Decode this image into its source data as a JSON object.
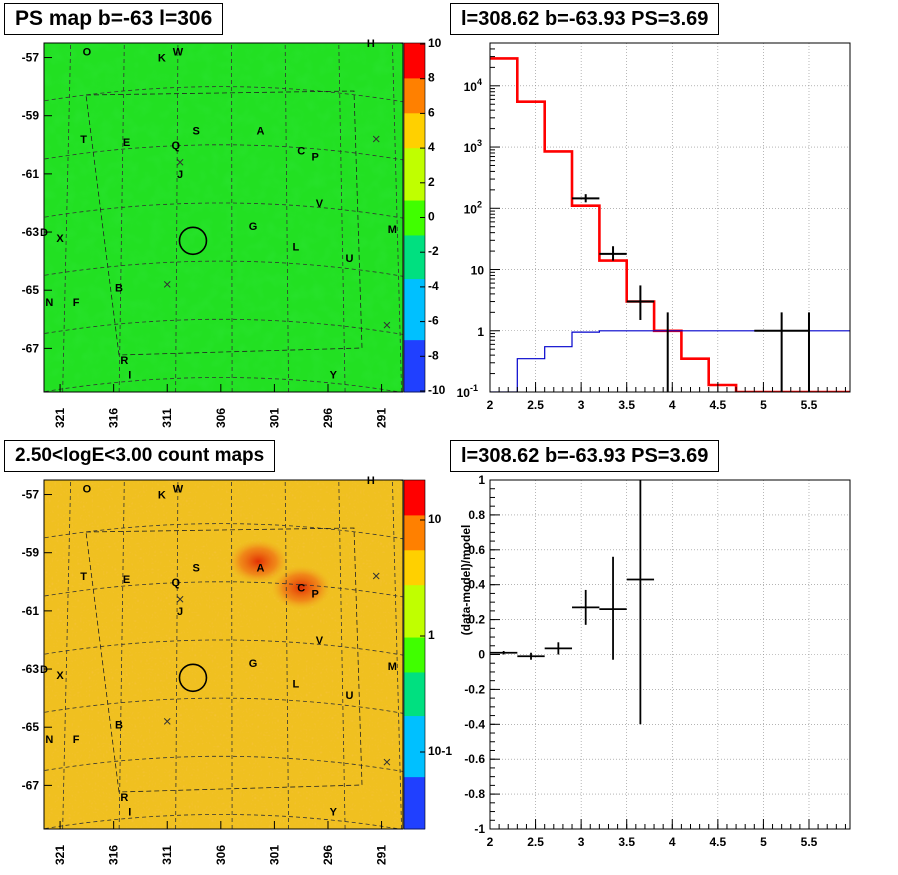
{
  "panels": {
    "ps_map": {
      "title": "PS map b=-63 l=306",
      "y_ticks": [
        "-57",
        "-59",
        "-61",
        "-63",
        "-65",
        "-67"
      ],
      "x_ticks": [
        "321",
        "316",
        "311",
        "306",
        "301",
        "296",
        "291"
      ],
      "colorbar_ticks": [
        "10",
        "8",
        "6",
        "4",
        "2",
        "0",
        "-2",
        "-4",
        "-6",
        "-8",
        "-10"
      ]
    },
    "count_map": {
      "title": "2.50<logE<3.00 count maps",
      "y_ticks": [
        "-57",
        "-59",
        "-61",
        "-63",
        "-65",
        "-67"
      ],
      "x_ticks": [
        "321",
        "316",
        "311",
        "306",
        "301",
        "296",
        "291"
      ],
      "colorbar_ticks": [
        "10",
        "1",
        "10-1"
      ]
    },
    "spectrum": {
      "title": "l=308.62 b=-63.93 PS=3.69",
      "y_ticks": [
        "10^4",
        "10^3",
        "10^2",
        "10",
        "1",
        "10^-1"
      ],
      "x_ticks": [
        "2",
        "2.5",
        "3",
        "3.5",
        "4",
        "4.5",
        "5",
        "5.5"
      ]
    },
    "residual": {
      "title": "l=308.62 b=-63.93 PS=3.69",
      "ylabel": "(data-model)/model",
      "y_ticks": [
        "1",
        "0.8",
        "0.6",
        "0.4",
        "0.2",
        "0",
        "-0.2",
        "-0.4",
        "-0.6",
        "-0.8",
        "-1"
      ],
      "x_ticks": [
        "2",
        "2.5",
        "3",
        "3.5",
        "4",
        "4.5",
        "5",
        "5.5"
      ]
    }
  },
  "source_labels": [
    "O",
    "K",
    "W",
    "H",
    "T",
    "E",
    "S",
    "Q",
    "A",
    "C",
    "P",
    "J",
    "V",
    "G",
    "M",
    "D",
    "X",
    "L",
    "U",
    "B",
    "N",
    "F",
    "R",
    "I",
    "Y"
  ],
  "colors": {
    "model_line": "#ff0000",
    "background_line": "#0000cc",
    "data_points": "#000000",
    "ps_map_base": "#22e022",
    "count_map_base": "#f0c020"
  },
  "chart_data": [
    {
      "type": "heatmap",
      "title": "PS map b=-63 l=306",
      "xlabel": "",
      "ylabel": "",
      "xlim": [
        322.5,
        289
      ],
      "ylim": [
        -68.5,
        -56.5
      ],
      "colorbar_range": [
        -10,
        10
      ],
      "source_markers": [
        {
          "label": "O",
          "l": 318.5,
          "b": -56.8
        },
        {
          "label": "K",
          "l": 311.5,
          "b": -57.0
        },
        {
          "label": "W",
          "l": 310.0,
          "b": -56.8
        },
        {
          "label": "H",
          "l": 292.0,
          "b": -56.5
        },
        {
          "label": "T",
          "l": 318.8,
          "b": -59.8
        },
        {
          "label": "E",
          "l": 314.8,
          "b": -59.9
        },
        {
          "label": "S",
          "l": 308.3,
          "b": -59.5
        },
        {
          "label": "Q",
          "l": 310.2,
          "b": -60.0
        },
        {
          "label": "A",
          "l": 302.3,
          "b": -59.5
        },
        {
          "label": "C",
          "l": 298.5,
          "b": -60.2
        },
        {
          "label": "P",
          "l": 297.2,
          "b": -60.4
        },
        {
          "label": "J",
          "l": 309.8,
          "b": -61.0
        },
        {
          "label": "V",
          "l": 296.8,
          "b": -62.0
        },
        {
          "label": "G",
          "l": 303.0,
          "b": -62.8
        },
        {
          "label": "M",
          "l": 290.0,
          "b": -62.9
        },
        {
          "label": "D",
          "l": 322.5,
          "b": -63.0
        },
        {
          "label": "X",
          "l": 321.0,
          "b": -63.2
        },
        {
          "label": "L",
          "l": 299.0,
          "b": -63.5
        },
        {
          "label": "U",
          "l": 294.0,
          "b": -63.9
        },
        {
          "label": "B",
          "l": 315.5,
          "b": -64.9
        },
        {
          "label": "N",
          "l": 322.0,
          "b": -65.4
        },
        {
          "label": "F",
          "l": 319.5,
          "b": -65.4
        },
        {
          "label": "R",
          "l": 315.0,
          "b": -67.4
        },
        {
          "label": "I",
          "l": 314.5,
          "b": -67.9
        },
        {
          "label": "Y",
          "l": 295.5,
          "b": -67.9
        }
      ],
      "circle": {
        "l": 308.6,
        "b": -63.3
      }
    },
    {
      "type": "line",
      "title": "l=308.62 b=-63.93 PS=3.69",
      "log_y": true,
      "xlim": [
        2,
        5.95
      ],
      "ylim": [
        0.1,
        50000
      ],
      "grid": true,
      "series": [
        {
          "type": "step",
          "color": "red",
          "edges": [
            2.0,
            2.3,
            2.6,
            2.9,
            3.2,
            3.5,
            3.8,
            4.1,
            4.4,
            4.7,
            5.0,
            5.3,
            5.6,
            5.95
          ],
          "values": [
            28000,
            5500,
            850,
            110,
            14,
            3,
            1,
            0.35,
            0.13,
            0.1,
            0.1,
            0.1,
            0.1
          ]
        },
        {
          "type": "step",
          "color": "blue",
          "edges": [
            2.0,
            2.3,
            2.6,
            2.9,
            3.2,
            3.5,
            3.8,
            4.1,
            4.4,
            4.7,
            5.0,
            5.3,
            5.6,
            5.95
          ],
          "values": [
            0.1,
            0.35,
            0.55,
            0.95,
            1.0,
            1.0,
            1.0,
            1.0,
            1.0,
            1.0,
            1.0,
            1.0,
            1.0
          ]
        },
        {
          "type": "errorbar",
          "color": "black",
          "points": [
            {
              "x": 3.05,
              "xerr": 0.15,
              "y": 145,
              "ylo": 125,
              "yhi": 170
            },
            {
              "x": 3.35,
              "xerr": 0.15,
              "y": 18,
              "ylo": 14,
              "yhi": 24
            },
            {
              "x": 3.65,
              "xerr": 0.15,
              "y": 3.0,
              "ylo": 1.5,
              "yhi": 5.5
            },
            {
              "x": 3.95,
              "xerr": 0.0,
              "y": 0.1,
              "ylo": 0.1,
              "yhi": 2.0
            },
            {
              "x": 5.2,
              "xerr": 0.3,
              "y": 1.0,
              "ylo": 0.1,
              "yhi": 2.0
            },
            {
              "x": 5.5,
              "xerr": 0.0,
              "y": 1.0,
              "ylo": 0.1,
              "yhi": 2.0
            }
          ]
        }
      ]
    },
    {
      "type": "heatmap",
      "title": "2.50<logE<3.00 count maps",
      "xlim": [
        322.5,
        289
      ],
      "ylim": [
        -68.5,
        -56.5
      ],
      "colorbar_scale": "log",
      "colorbar_range": [
        0.03,
        30
      ],
      "hotspots": [
        {
          "l": 302.5,
          "b": -59.3
        },
        {
          "l": 298.5,
          "b": -60.2
        }
      ],
      "circle": {
        "l": 308.6,
        "b": -63.3
      }
    },
    {
      "type": "scatter",
      "title": "l=308.62 b=-63.93 PS=3.69",
      "ylabel": "(data-model)/model",
      "xlim": [
        2,
        5.95
      ],
      "ylim": [
        -1,
        1
      ],
      "grid": true,
      "points": [
        {
          "x": 2.15,
          "xerr": 0.15,
          "y": 0.01,
          "ylo": 0.0,
          "yhi": 0.02
        },
        {
          "x": 2.45,
          "xerr": 0.15,
          "y": -0.01,
          "ylo": -0.03,
          "yhi": 0.01
        },
        {
          "x": 2.75,
          "xerr": 0.15,
          "y": 0.035,
          "ylo": 0.0,
          "yhi": 0.07
        },
        {
          "x": 3.05,
          "xerr": 0.15,
          "y": 0.27,
          "ylo": 0.17,
          "yhi": 0.37
        },
        {
          "x": 3.35,
          "xerr": 0.15,
          "y": 0.26,
          "ylo": -0.03,
          "yhi": 0.56
        },
        {
          "x": 3.65,
          "xerr": 0.15,
          "y": 0.43,
          "ylo": -0.4,
          "yhi": 1.0
        }
      ]
    }
  ]
}
